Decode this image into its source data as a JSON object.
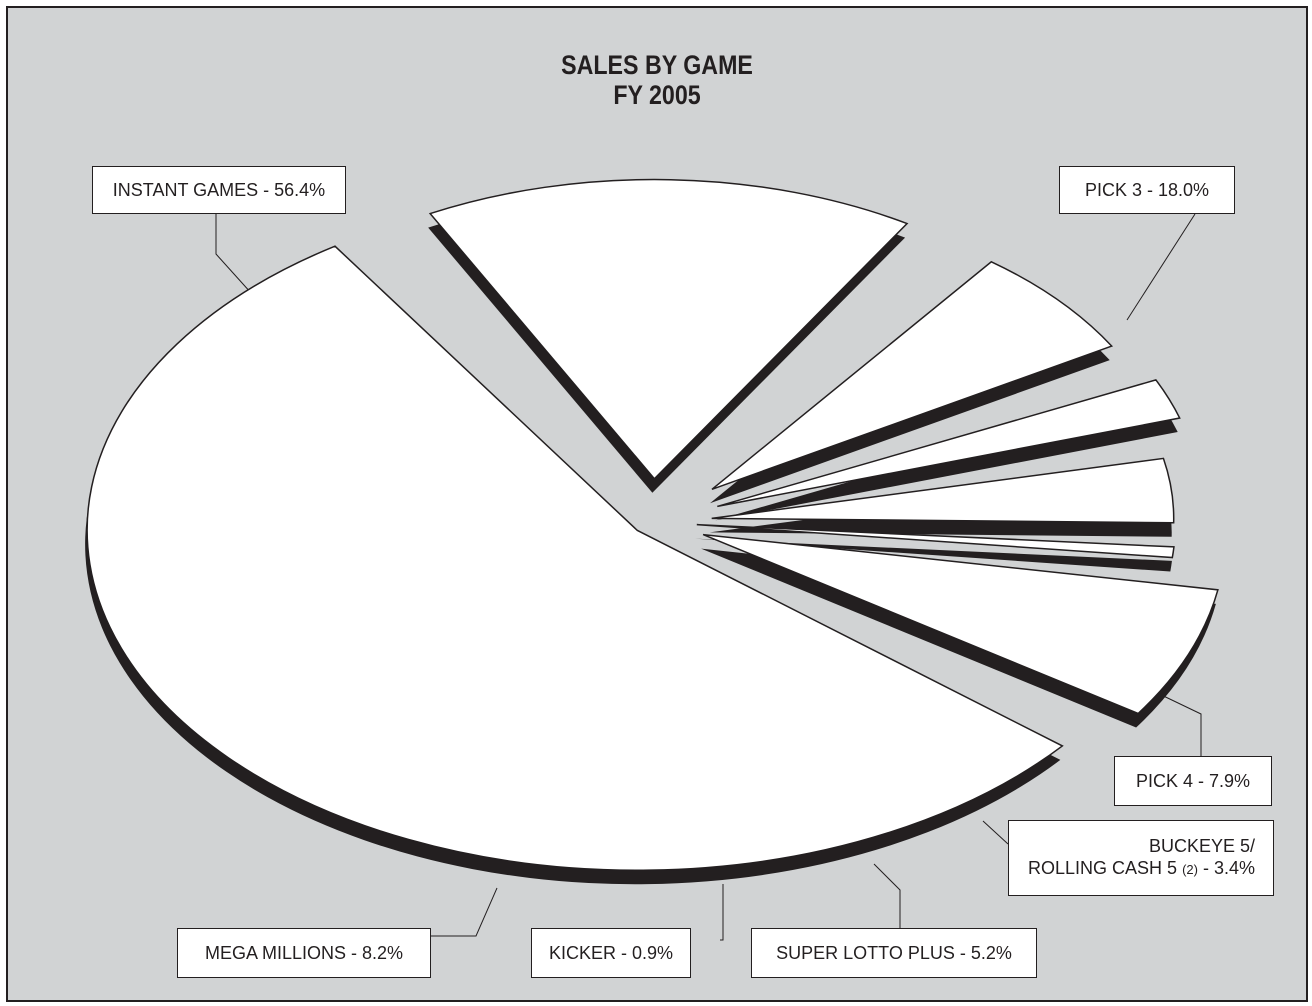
{
  "chart_data": {
    "type": "pie",
    "title": "SALES BY GAME",
    "subtitle": "FY 2005",
    "slices": [
      {
        "label": "INSTANT GAMES - 56.4%",
        "value": 56.4
      },
      {
        "label": "PICK 3 - 18.0%",
        "value": 18.0
      },
      {
        "label": "PICK 4 - 7.9%",
        "value": 7.9
      },
      {
        "label_line1": "BUCKEYE 5/",
        "label_line2": "ROLLING CASH 5",
        "label_note": "(2)",
        "label_pct": " - 3.4%",
        "value": 3.4
      },
      {
        "label": "SUPER LOTTO PLUS - 5.2%",
        "value": 5.2
      },
      {
        "label": "KICKER - 0.9%",
        "value": 0.9
      },
      {
        "label": "MEGA MILLIONS - 8.2%",
        "value": 8.2
      }
    ],
    "colors": {
      "background": "#d1d3d4",
      "slice": "#ffffff",
      "shadow": "#231f20",
      "ink": "#231f20"
    }
  }
}
